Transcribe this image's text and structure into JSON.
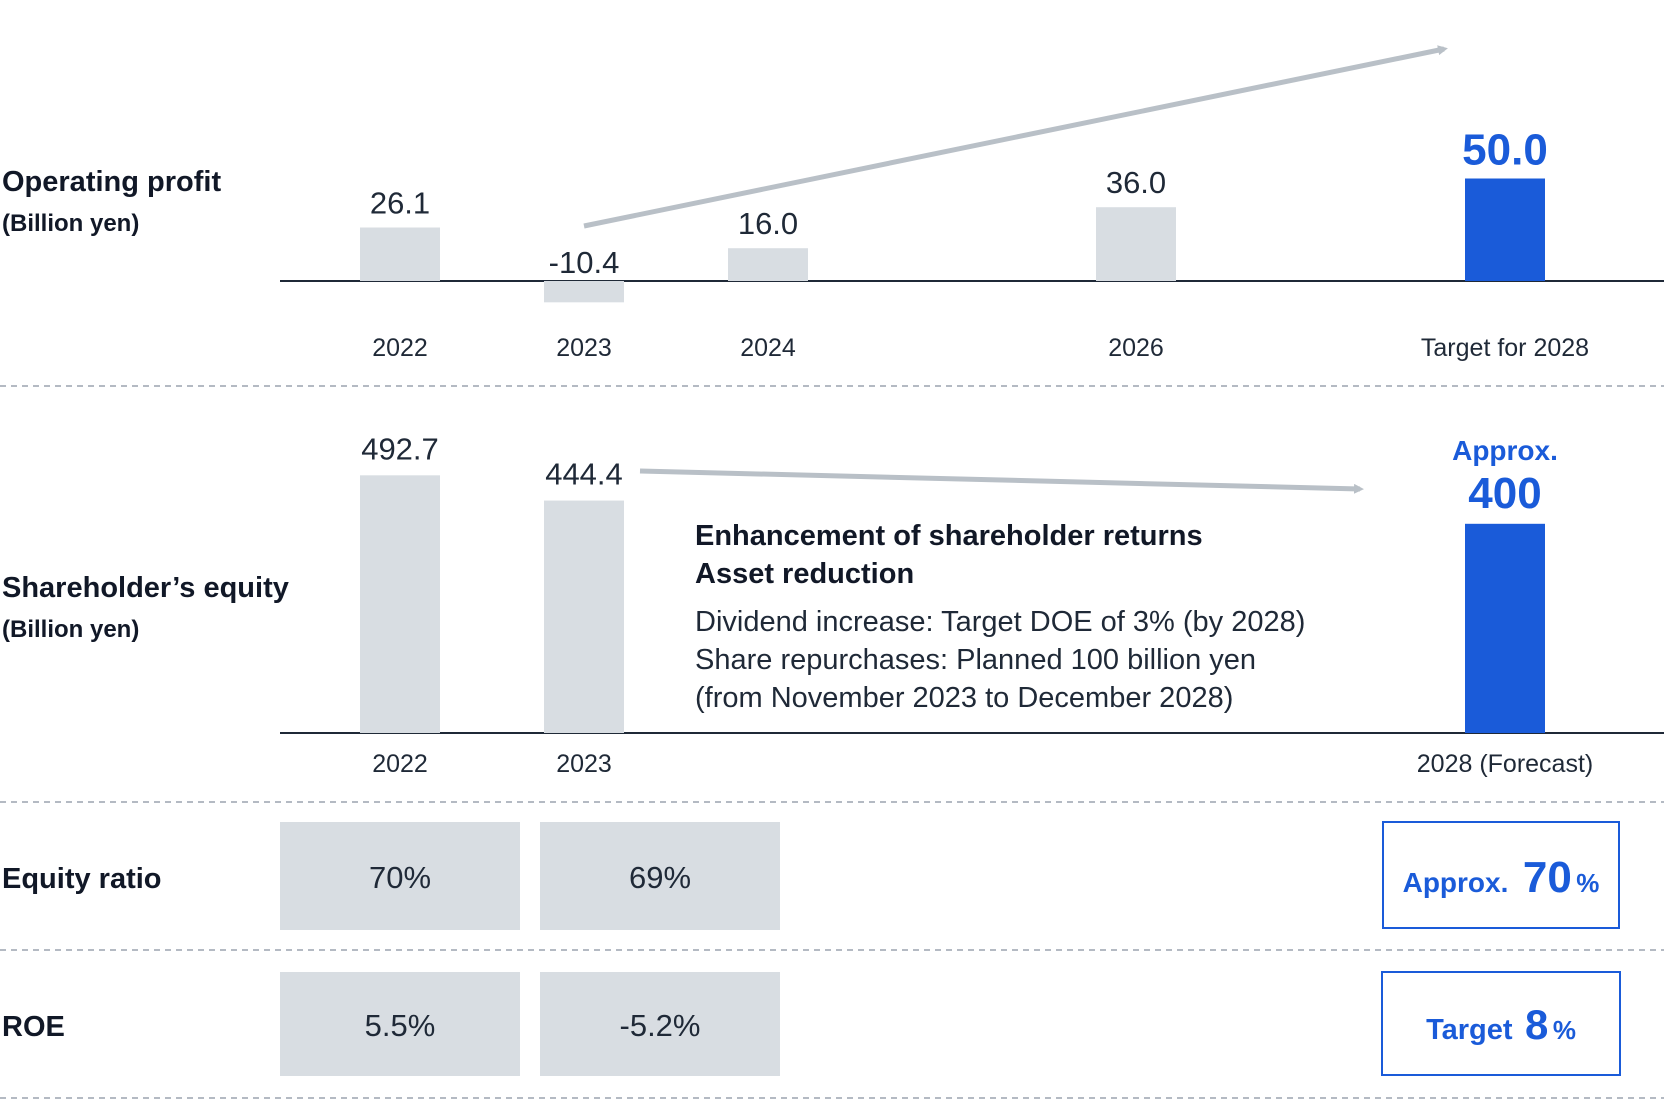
{
  "colors": {
    "gray_bar": "#d8dde2",
    "highlight": "#1a5bd9",
    "arrow": "#b9c0c7",
    "axis": "#1f2937",
    "divider": "#9ca3af"
  },
  "sections": {
    "operating_profit": {
      "label": "Operating profit",
      "unit": "(Billion yen)"
    },
    "equity": {
      "label": "Shareholder’s equity",
      "unit": "(Billion yen)"
    },
    "equity_ratio": {
      "label": "Equity ratio"
    },
    "roe": {
      "label": "ROE"
    }
  },
  "note": {
    "heading_1": "Enhancement of shareholder returns",
    "heading_2": "Asset reduction",
    "line_1": "Dividend increase: Target DOE of 3% (by 2028)",
    "line_2": "Share repurchases: Planned 100 billion yen",
    "line_3": "(from November 2023 to December 2028)"
  },
  "tables": {
    "equity_ratio": {
      "cells": [
        "70%",
        "69%"
      ],
      "target_prefix": "Approx.",
      "target_value": "70",
      "target_suffix": "%"
    },
    "roe": {
      "cells": [
        "5.5%",
        "-5.2%"
      ],
      "target_prefix": "Target",
      "target_value": "8",
      "target_suffix": "%"
    }
  },
  "chart_data": [
    {
      "type": "bar",
      "categories": [
        "2022",
        "2023",
        "2024",
        "2026",
        "Target for 2028"
      ],
      "values": [
        26.1,
        -10.4,
        16.0,
        36.0,
        50.0
      ],
      "value_labels": [
        "26.1",
        "-10.4",
        "16.0",
        "36.0",
        "50.0"
      ],
      "highlighted": [
        false,
        false,
        false,
        false,
        true
      ],
      "trend_arrow": {
        "from": "2023",
        "to": "Target for 2028"
      }
    },
    {
      "type": "bar",
      "categories": [
        "2022",
        "2023",
        "2028 (Forecast)"
      ],
      "values": [
        492.7,
        444.4,
        400
      ],
      "value_labels": [
        "492.7",
        "444.4",
        "400"
      ],
      "value_prefixes": [
        "",
        "",
        "Approx."
      ],
      "highlighted": [
        false,
        false,
        true
      ],
      "trend_arrow": {
        "from": "2023",
        "to": "2028 (Forecast)"
      }
    }
  ]
}
